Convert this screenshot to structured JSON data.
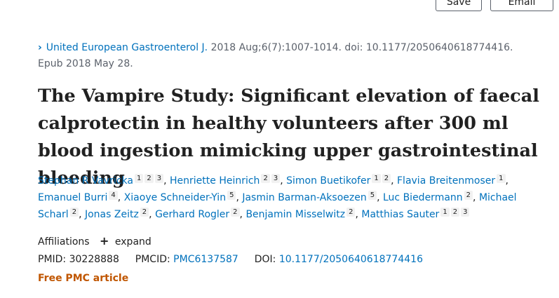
{
  "toolbar": {
    "save_label": "Save",
    "email_label": "Email"
  },
  "citation": {
    "journal": "United European Gastroenterol J.",
    "details": " 2018 Aug;6(7):1007-1014. doi: 10.1177/2050640618774416.",
    "epub": "Epub 2018 May 28."
  },
  "title": "The Vampire Study: Significant elevation of faecal calprotectin in healthy volunteers after 300 ml blood ingestion mimicking upper gastrointestinal bleeding",
  "authors": [
    {
      "name": "Stephan R Vavricka",
      "affiliations": [
        "1",
        "2",
        "3"
      ]
    },
    {
      "name": "Henriette Heinrich",
      "affiliations": [
        "2",
        "3"
      ]
    },
    {
      "name": "Simon Buetikofer",
      "affiliations": [
        "1",
        "2"
      ]
    },
    {
      "name": "Flavia Breitenmoser",
      "affiliations": [
        "1"
      ]
    },
    {
      "name": "Emanuel Burri",
      "affiliations": [
        "4"
      ]
    },
    {
      "name": "Xiaoye Schneider-Yin",
      "affiliations": [
        "5"
      ]
    },
    {
      "name": "Jasmin Barman-Aksoezen",
      "affiliations": [
        "5"
      ]
    },
    {
      "name": "Luc Biedermann",
      "affiliations": [
        "2"
      ]
    },
    {
      "name": "Michael Scharl",
      "affiliations": [
        "2"
      ]
    },
    {
      "name": "Jonas Zeitz",
      "affiliations": [
        "2"
      ]
    },
    {
      "name": "Gerhard Rogler",
      "affiliations": [
        "2"
      ]
    },
    {
      "name": "Benjamin Misselwitz",
      "affiliations": [
        "2"
      ]
    },
    {
      "name": "Matthias Sauter",
      "affiliations": [
        "1",
        "2",
        "3"
      ]
    }
  ],
  "affiliations": {
    "label": "Affiliations",
    "expand_label": "expand"
  },
  "ids": {
    "pmid_label": "PMID:",
    "pmid": "30228888",
    "pmcid_label": "PMCID:",
    "pmcid": "PMC6137587",
    "doi_label": "DOI:",
    "doi": "10.1177/2050640618774416"
  },
  "free_label": "Free PMC article",
  "colors": {
    "link": "#0071bc",
    "free": "#c05600",
    "text": "#212121"
  }
}
